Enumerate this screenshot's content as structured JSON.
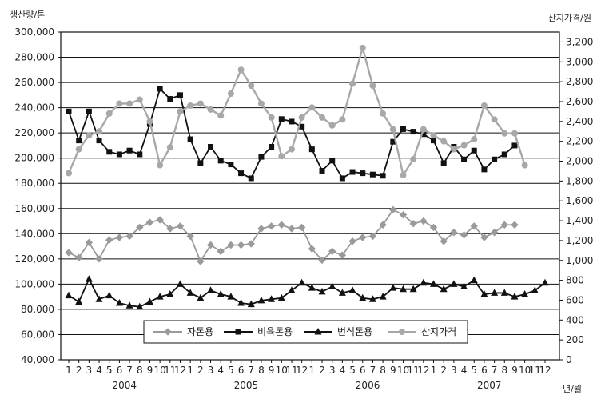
{
  "chart_data": {
    "type": "line",
    "ylabel_left": "생산량/톤",
    "ylabel_right": "산지가격/원",
    "xlabel": "년/월",
    "ylim_left": [
      40000,
      300000
    ],
    "ylim_right": [
      0,
      3300
    ],
    "yticks_left": [
      "300,000",
      "280,000",
      "260,000",
      "240,000",
      "220,000",
      "200,000",
      "180,000",
      "160,000",
      "140,000",
      "120,000",
      "100,000",
      "80,000",
      "60,000",
      "40,000"
    ],
    "yticks_right": [
      "3,200",
      "3,000",
      "2,800",
      "2,600",
      "2,400",
      "2,200",
      "2,000",
      "1,800",
      "1,600",
      "1,400",
      "1,200",
      "1,000",
      "800",
      "600",
      "400",
      "200",
      "0"
    ],
    "categories": [
      "1",
      "2",
      "3",
      "4",
      "5",
      "6",
      "7",
      "8",
      "9",
      "10",
      "11",
      "12",
      "1",
      "2",
      "3",
      "4",
      "5",
      "6",
      "7",
      "8",
      "9",
      "10",
      "11",
      "12",
      "1",
      "2",
      "3",
      "4",
      "5",
      "6",
      "7",
      "8",
      "9",
      "10",
      "11",
      "12",
      "1",
      "2",
      "3",
      "4",
      "5",
      "6",
      "7",
      "8",
      "9",
      "10",
      "11",
      "12"
    ],
    "years": [
      "2004",
      "2005",
      "2006",
      "2007"
    ],
    "grid": true,
    "legend_position": "bottom-center",
    "series": [
      {
        "name": "자돈용",
        "axis": "left",
        "marker": "diamond",
        "color": "#9a9a9a",
        "values": [
          125000,
          121000,
          133000,
          120000,
          135000,
          137000,
          138000,
          145000,
          149000,
          151000,
          144000,
          146000,
          138000,
          118000,
          131000,
          126000,
          131000,
          131000,
          132000,
          144000,
          146000,
          147000,
          144000,
          145000,
          128000,
          119000,
          126000,
          123000,
          134000,
          137000,
          138000,
          147000,
          159000,
          155000,
          148000,
          150000,
          145000,
          134000,
          141000,
          139000,
          146000,
          137000,
          141000,
          147000,
          147000,
          null,
          null,
          null
        ]
      },
      {
        "name": "비육돈용",
        "axis": "left",
        "marker": "square",
        "color": "#111111",
        "values": [
          237000,
          214000,
          237000,
          214000,
          205000,
          203000,
          206000,
          203000,
          227000,
          255000,
          247000,
          250000,
          215000,
          196000,
          209000,
          198000,
          195000,
          188000,
          184000,
          201000,
          209000,
          231000,
          229000,
          225000,
          207000,
          190000,
          198000,
          184000,
          189000,
          188000,
          187000,
          186000,
          213000,
          223000,
          221000,
          219000,
          214000,
          196000,
          209000,
          199000,
          206000,
          191000,
          199000,
          203000,
          210000,
          null,
          null,
          null
        ]
      },
      {
        "name": "번식돈용",
        "axis": "left",
        "marker": "triangle",
        "color": "#111111",
        "values": [
          91000,
          86000,
          104000,
          88000,
          91000,
          85000,
          83000,
          82000,
          86000,
          90000,
          92000,
          100000,
          93000,
          89000,
          95000,
          92000,
          90000,
          85000,
          84000,
          87000,
          88000,
          89000,
          95000,
          101000,
          97000,
          94000,
          98000,
          93000,
          95000,
          89000,
          88000,
          90000,
          97000,
          96000,
          96000,
          101000,
          100000,
          96000,
          100000,
          98000,
          103000,
          92000,
          93000,
          93000,
          90000,
          92000,
          95000,
          101000
        ]
      },
      {
        "name": "산지가격",
        "axis": "right",
        "marker": "circle",
        "color": "#a8a8a8",
        "values": [
          1880,
          2120,
          2260,
          2300,
          2480,
          2580,
          2580,
          2620,
          2400,
          1960,
          2140,
          2500,
          2560,
          2580,
          2520,
          2460,
          2680,
          2920,
          2760,
          2580,
          2440,
          2050,
          2120,
          2440,
          2540,
          2440,
          2360,
          2420,
          2780,
          3140,
          2760,
          2480,
          2320,
          1860,
          2020,
          2320,
          2260,
          2200,
          2120,
          2160,
          2220,
          2560,
          2420,
          2280,
          2280,
          1960,
          null,
          null
        ]
      }
    ]
  }
}
